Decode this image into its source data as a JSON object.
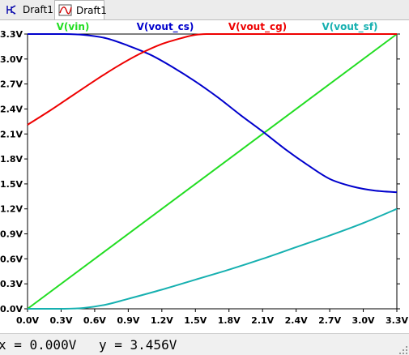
{
  "tabs": [
    {
      "label": "Draft1",
      "icon": "schematic-icon",
      "active": false
    },
    {
      "label": "Draft1",
      "icon": "waveform-icon",
      "active": true
    }
  ],
  "chart_data": {
    "type": "line",
    "x_axis": {
      "min": 0.0,
      "max": 3.3,
      "ticks": [
        "0.0V",
        "0.3V",
        "0.6V",
        "0.9V",
        "1.2V",
        "1.5V",
        "1.8V",
        "2.1V",
        "2.4V",
        "2.7V",
        "3.0V",
        "3.3V"
      ]
    },
    "y_axis": {
      "min": 0.0,
      "max": 3.3,
      "ticks": [
        "0.0V",
        "0.3V",
        "0.6V",
        "0.9V",
        "1.2V",
        "1.5V",
        "1.8V",
        "2.1V",
        "2.4V",
        "2.7V",
        "3.0V",
        "3.3V"
      ]
    },
    "grid": false,
    "series": [
      {
        "name": "V(vin)",
        "color": "#22dd22",
        "x": [
          0.0,
          3.3
        ],
        "y": [
          0.0,
          3.3
        ]
      },
      {
        "name": "V(vout_cs)",
        "color": "#0000cc",
        "x": [
          0.0,
          0.3,
          0.5,
          0.7,
          0.9,
          1.1,
          1.3,
          1.5,
          1.7,
          1.9,
          2.1,
          2.3,
          2.5,
          2.7,
          2.9,
          3.1,
          3.3
        ],
        "y": [
          3.3,
          3.3,
          3.29,
          3.25,
          3.16,
          3.05,
          2.9,
          2.73,
          2.54,
          2.33,
          2.13,
          1.92,
          1.73,
          1.56,
          1.47,
          1.42,
          1.4
        ]
      },
      {
        "name": "V(vout_cg)",
        "color": "#ee0000",
        "x": [
          0.0,
          0.2,
          0.4,
          0.6,
          0.8,
          1.0,
          1.2,
          1.4,
          1.5,
          1.6,
          1.8,
          2.1,
          2.5,
          3.0,
          3.3
        ],
        "y": [
          2.21,
          2.38,
          2.56,
          2.74,
          2.91,
          3.06,
          3.18,
          3.26,
          3.29,
          3.3,
          3.3,
          3.3,
          3.3,
          3.3,
          3.3
        ]
      },
      {
        "name": "V(vout_sf)",
        "color": "#16b0b0",
        "x": [
          0.0,
          0.3,
          0.5,
          0.7,
          0.9,
          1.2,
          1.5,
          1.8,
          2.1,
          2.4,
          2.7,
          3.0,
          3.3
        ],
        "y": [
          0.0,
          0.0,
          0.01,
          0.05,
          0.12,
          0.23,
          0.35,
          0.47,
          0.6,
          0.74,
          0.88,
          1.03,
          1.2
        ]
      }
    ]
  },
  "status": {
    "x_readout": "x = 0.000V",
    "y_readout": "y = 3.456V"
  }
}
